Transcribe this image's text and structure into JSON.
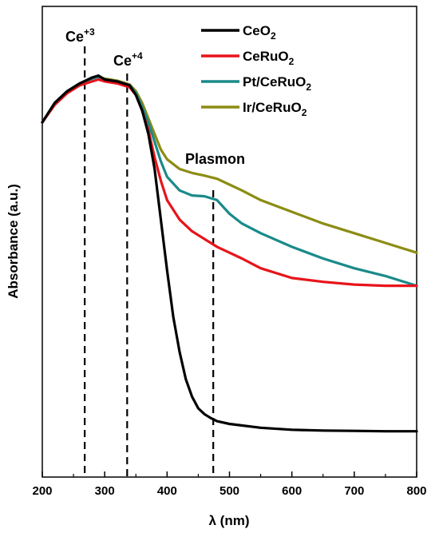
{
  "chart_data": {
    "type": "line",
    "xlabel": "λ (nm)",
    "ylabel": "Absorbance (a.u.)",
    "xlim": [
      200,
      800
    ],
    "ylim": [
      0,
      1.0
    ],
    "x_ticks": [
      "200",
      "300",
      "400",
      "500",
      "600",
      "700",
      "800"
    ],
    "y_ticks_labeled": false,
    "legend_position": "top-right",
    "grid": false,
    "series": [
      {
        "name": "CeO2",
        "color": "#000000",
        "x": [
          200,
          220,
          240,
          260,
          280,
          290,
          300,
          320,
          340,
          350,
          360,
          370,
          380,
          390,
          400,
          410,
          420,
          430,
          440,
          450,
          460,
          470,
          480,
          500,
          550,
          600,
          650,
          700,
          750,
          800
        ],
        "y": [
          0.85,
          0.9,
          0.93,
          0.95,
          0.965,
          0.97,
          0.96,
          0.955,
          0.945,
          0.92,
          0.88,
          0.82,
          0.73,
          0.6,
          0.47,
          0.35,
          0.26,
          0.19,
          0.145,
          0.115,
          0.1,
          0.09,
          0.082,
          0.075,
          0.065,
          0.06,
          0.058,
          0.057,
          0.056,
          0.056
        ]
      },
      {
        "name": "CeRuO2",
        "color": "#e8141b",
        "x": [
          200,
          220,
          240,
          260,
          280,
          290,
          300,
          320,
          340,
          350,
          360,
          370,
          380,
          390,
          400,
          420,
          440,
          460,
          480,
          500,
          520,
          550,
          600,
          650,
          700,
          750,
          800
        ],
        "y": [
          0.85,
          0.895,
          0.925,
          0.945,
          0.955,
          0.96,
          0.955,
          0.95,
          0.94,
          0.92,
          0.88,
          0.83,
          0.76,
          0.7,
          0.65,
          0.6,
          0.57,
          0.55,
          0.53,
          0.515,
          0.5,
          0.475,
          0.45,
          0.44,
          0.433,
          0.43,
          0.43
        ]
      },
      {
        "name": "Pt/CeRuO2",
        "color": "#1a8a8a",
        "x": [
          200,
          220,
          240,
          260,
          280,
          290,
          300,
          320,
          340,
          350,
          360,
          370,
          380,
          390,
          400,
          420,
          440,
          460,
          480,
          500,
          520,
          550,
          600,
          650,
          700,
          750,
          800
        ],
        "y": [
          0.85,
          0.9,
          0.93,
          0.95,
          0.962,
          0.967,
          0.96,
          0.955,
          0.945,
          0.925,
          0.89,
          0.85,
          0.8,
          0.75,
          0.71,
          0.675,
          0.662,
          0.66,
          0.65,
          0.615,
          0.59,
          0.565,
          0.53,
          0.5,
          0.475,
          0.455,
          0.43
        ]
      },
      {
        "name": "Ir/CeRuO2",
        "color": "#8c8c14",
        "x": [
          200,
          220,
          240,
          260,
          280,
          290,
          300,
          320,
          340,
          350,
          360,
          370,
          380,
          390,
          400,
          420,
          440,
          460,
          480,
          500,
          520,
          550,
          600,
          650,
          700,
          750,
          800
        ],
        "y": [
          0.85,
          0.9,
          0.93,
          0.95,
          0.963,
          0.968,
          0.962,
          0.957,
          0.947,
          0.93,
          0.9,
          0.86,
          0.82,
          0.78,
          0.755,
          0.73,
          0.72,
          0.713,
          0.705,
          0.69,
          0.675,
          0.65,
          0.62,
          0.59,
          0.565,
          0.54,
          0.515
        ]
      }
    ],
    "annotations": [
      {
        "x": 268,
        "label_main": "Ce",
        "label_sup": "+3",
        "style": "dashed-vertical"
      },
      {
        "x": 336,
        "label_main": "Ce",
        "label_sup": "+4",
        "style": "dashed-vertical"
      },
      {
        "x": 474,
        "label_main": "Plasmon",
        "label_sup": "",
        "style": "dashed-vertical"
      }
    ],
    "legend": [
      {
        "main": "CeO",
        "sub": "2"
      },
      {
        "main": "CeRuO",
        "sub": "2"
      },
      {
        "main": "Pt/CeRuO",
        "sub": "2"
      },
      {
        "main": "Ir/CeRuO",
        "sub": "2"
      }
    ]
  }
}
